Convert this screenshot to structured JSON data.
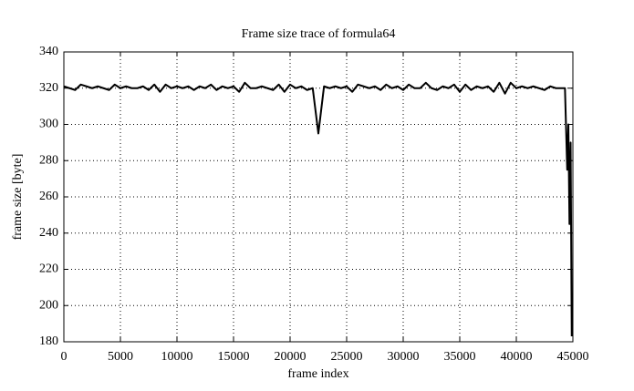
{
  "chart_data": {
    "type": "line",
    "title": "Frame size trace of formula64",
    "x_label": "frame index",
    "y_label": "frame size [byte]",
    "x": [
      0,
      500,
      1000,
      1500,
      2000,
      2500,
      3000,
      3500,
      4000,
      4500,
      5000,
      5500,
      6000,
      6500,
      7000,
      7500,
      8000,
      8500,
      9000,
      9500,
      10000,
      10500,
      11000,
      11500,
      12000,
      12500,
      13000,
      13500,
      14000,
      14500,
      15000,
      15500,
      16000,
      16500,
      17000,
      17500,
      18000,
      18500,
      19000,
      19500,
      20000,
      20500,
      21000,
      21500,
      22000,
      22500,
      23000,
      23500,
      24000,
      24500,
      25000,
      25500,
      26000,
      26500,
      27000,
      27500,
      28000,
      28500,
      29000,
      29500,
      30000,
      30500,
      31000,
      31500,
      32000,
      32500,
      33000,
      33500,
      34000,
      34500,
      35000,
      35500,
      36000,
      36500,
      37000,
      37500,
      38000,
      38500,
      39000,
      39500,
      40000,
      40500,
      41000,
      41500,
      42000,
      42500,
      43000,
      43500,
      44000,
      44300,
      44500,
      44600,
      44700,
      44800,
      44900
    ],
    "series": [
      {
        "name": "formula64",
        "color": "#000000",
        "values": [
          321,
          320,
          319,
          322,
          321,
          320,
          321,
          320,
          319,
          322,
          320,
          321,
          320,
          320,
          321,
          319,
          322,
          318,
          322,
          320,
          321,
          320,
          321,
          319,
          321,
          320,
          322,
          319,
          321,
          320,
          321,
          318,
          323,
          320,
          320,
          321,
          320,
          319,
          322,
          318,
          322,
          320,
          321,
          319,
          320,
          295,
          321,
          320,
          321,
          320,
          321,
          318,
          322,
          321,
          320,
          321,
          319,
          322,
          320,
          321,
          319,
          322,
          320,
          320,
          323,
          320,
          319,
          321,
          320,
          322,
          318,
          322,
          319,
          321,
          320,
          321,
          318,
          323,
          317,
          323,
          320,
          321,
          320,
          321,
          320,
          319,
          321,
          320,
          320,
          320,
          275,
          300,
          245,
          290,
          183
        ]
      }
    ],
    "xlim": [
      0,
      45000
    ],
    "ylim": [
      180,
      340
    ],
    "xticks": [
      0,
      5000,
      10000,
      15000,
      20000,
      25000,
      30000,
      35000,
      40000,
      45000
    ],
    "yticks": [
      180,
      200,
      220,
      240,
      260,
      280,
      300,
      320,
      340
    ],
    "grid": true
  }
}
